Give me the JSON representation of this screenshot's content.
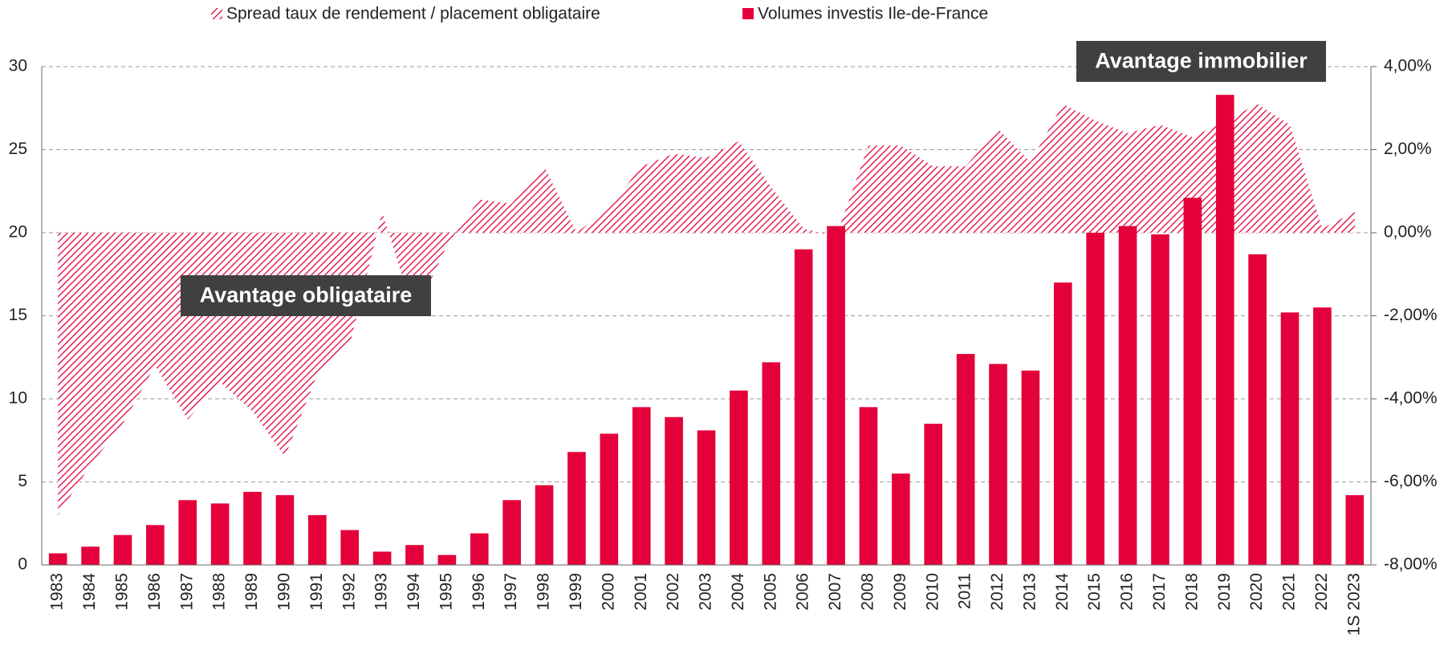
{
  "chart_data": {
    "type": "bar",
    "categories": [
      "1983",
      "1984",
      "1985",
      "1986",
      "1987",
      "1988",
      "1989",
      "1990",
      "1991",
      "1992",
      "1993",
      "1994",
      "1995",
      "1996",
      "1997",
      "1998",
      "1999",
      "2000",
      "2001",
      "2002",
      "2003",
      "2004",
      "2005",
      "2006",
      "2007",
      "2008",
      "2009",
      "2010",
      "2011",
      "2012",
      "2013",
      "2014",
      "2015",
      "2016",
      "2017",
      "2018",
      "2019",
      "2020",
      "2021",
      "2022",
      "1S 2023"
    ],
    "series": [
      {
        "name": "Spread taux de rendement / placement obligataire",
        "type": "area",
        "axis": "y2",
        "color": "#e4003a",
        "values": [
          -6.8,
          -5.6,
          -4.6,
          -3.2,
          -4.5,
          -3.6,
          -4.3,
          -5.4,
          -3.4,
          -2.7,
          0.5,
          -2.0,
          -0.3,
          0.8,
          0.7,
          1.6,
          0.0,
          0.6,
          1.6,
          1.9,
          1.8,
          2.2,
          1.1,
          0.1,
          -0.1,
          2.1,
          2.1,
          1.6,
          1.6,
          2.5,
          1.7,
          3.1,
          2.7,
          2.4,
          2.6,
          2.3,
          2.7,
          3.1,
          2.6,
          0.1,
          0.5
        ]
      },
      {
        "name": "Volumes investis Ile-de-France",
        "type": "bar",
        "color": "#e4003a",
        "values": [
          0.7,
          1.1,
          1.8,
          2.4,
          3.9,
          3.7,
          4.4,
          4.2,
          3.0,
          2.1,
          0.8,
          1.2,
          0.6,
          1.9,
          3.9,
          4.8,
          6.8,
          7.9,
          9.5,
          8.9,
          8.1,
          10.5,
          12.2,
          19.0,
          20.4,
          9.5,
          5.5,
          8.5,
          12.7,
          12.1,
          11.7,
          17.0,
          20.0,
          20.4,
          19.9,
          22.1,
          28.3,
          18.7,
          15.2,
          15.5,
          4.2
        ]
      }
    ],
    "ylim": [
      0,
      30
    ],
    "yticks": [
      0,
      5,
      10,
      15,
      20,
      25,
      30
    ],
    "y2lim": [
      -8,
      4
    ],
    "y2ticks": [
      {
        "value": -8,
        "label": "-8,00%"
      },
      {
        "value": -6,
        "label": "-6,00%"
      },
      {
        "value": -4,
        "label": "-4,00%"
      },
      {
        "value": -2,
        "label": "-2,00%"
      },
      {
        "value": 0,
        "label": "0,00%"
      },
      {
        "value": 2,
        "label": "2,00%"
      },
      {
        "value": 4,
        "label": "4,00%"
      }
    ],
    "grid": true,
    "legend": "top",
    "annotations": [
      "Avantage obligataire",
      "Avantage immobilier"
    ]
  }
}
